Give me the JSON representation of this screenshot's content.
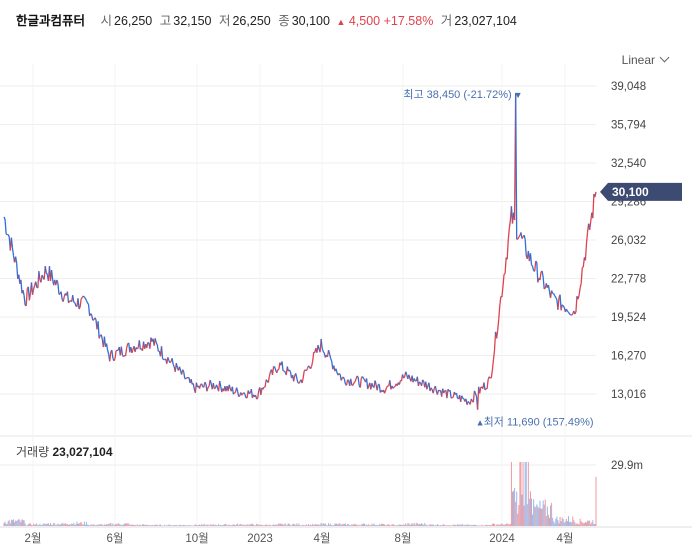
{
  "header": {
    "name": "한글과컴퓨터",
    "open_label": "시",
    "open": "26,250",
    "high_label": "고",
    "high": "32,150",
    "low_label": "저",
    "low": "26,250",
    "close_label": "종",
    "close": "30,100",
    "change_arrow": "▲",
    "change": "4,500",
    "change_pct": "+17.58%",
    "volume_label": "거",
    "volume": "23,027,104"
  },
  "scale_toggle": {
    "label": "Linear",
    "icon": "chevron-down-icon"
  },
  "volume_panel": {
    "label": "거래량",
    "value": "23,027,104",
    "axis_tick": "29.9m"
  },
  "colors": {
    "up": "#e0424c",
    "down": "#2f6fd6",
    "badge": "#3d4b72",
    "annotation": "#4a6fb0",
    "grid": "#eeeeee"
  },
  "chart_data": {
    "type": "line",
    "title": "",
    "xlabel": "",
    "ylabel": "",
    "ylim": [
      11690,
      39048
    ],
    "y_ticks": [
      "39,048",
      "35,794",
      "32,540",
      "29,286",
      "26,032",
      "22,778",
      "19,524",
      "16,270",
      "13,016"
    ],
    "x_tick_labels": [
      "2월",
      "6월",
      "10월",
      "2023",
      "4월",
      "8월",
      "2024",
      "4월"
    ],
    "current_price": {
      "label": "30,100",
      "value": 30100
    },
    "annotations": [
      {
        "label": "최고",
        "value_text": "38,450 (-21.72%)",
        "value": 38450,
        "marker": "▼"
      },
      {
        "label": "최저",
        "value_text": "11,690 (157.49%)",
        "value": 11690,
        "marker": "▲"
      }
    ],
    "series": [
      {
        "x": [
          "2022-01",
          "2022-02",
          "2022-03",
          "2022-04",
          "2022-05",
          "2022-06",
          "2022-07",
          "2022-08",
          "2022-09",
          "2022-10",
          "2022-11",
          "2022-12",
          "2023-01",
          "2023-02",
          "2023-03",
          "2023-04",
          "2023-05",
          "2023-06",
          "2023-07",
          "2023-08",
          "2023-09",
          "2023-10",
          "2023-11",
          "2023-12",
          "2024-01",
          "2024-02",
          "2024-03",
          "2024-04",
          "2024-05"
        ],
        "values": [
          28000,
          21000,
          23500,
          21000,
          20500,
          16200,
          17000,
          17500,
          15500,
          13500,
          13800,
          13200,
          13000,
          15500,
          14000,
          17200,
          14300,
          14000,
          13500,
          14500,
          13800,
          13000,
          12400,
          14200,
          28000,
          24000,
          21000,
          20000,
          30100
        ]
      }
    ],
    "volume_series": {
      "x": [
        "2022-01",
        "2022-02",
        "2022-03",
        "2022-04",
        "2022-05",
        "2022-06",
        "2022-07",
        "2022-08",
        "2022-09",
        "2022-10",
        "2022-11",
        "2022-12",
        "2023-01",
        "2023-02",
        "2023-03",
        "2023-04",
        "2023-05",
        "2023-06",
        "2023-07",
        "2023-08",
        "2023-09",
        "2023-10",
        "2023-11",
        "2023-12",
        "2024-01",
        "2024-02",
        "2024-03",
        "2024-04",
        "2024-05"
      ],
      "values": [
        2500000,
        900000,
        1200000,
        1500000,
        700000,
        1100000,
        600000,
        500000,
        500000,
        600000,
        700000,
        800000,
        600000,
        900000,
        700000,
        1000000,
        800000,
        900000,
        600000,
        1100000,
        700000,
        600000,
        500000,
        900000,
        29900000,
        9000000,
        3500000,
        2500000,
        23027104
      ]
    },
    "grid": true,
    "legend": "none"
  }
}
